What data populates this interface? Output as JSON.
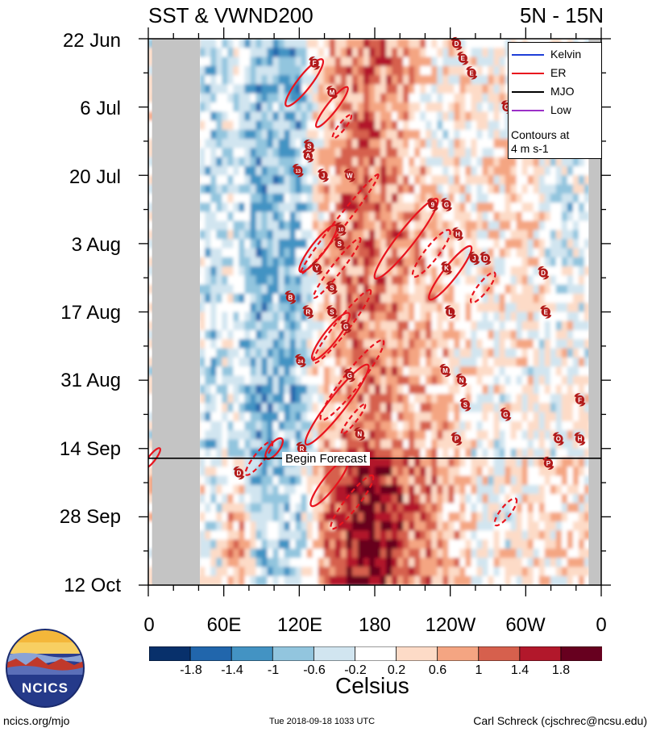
{
  "header": {
    "title_left": "SST & VWND200",
    "title_right": "5N - 15N"
  },
  "chart_data": {
    "type": "heatmap",
    "title": "SST & VWND200",
    "subtitle": "5N - 15N",
    "y_axis": {
      "labels": [
        "22 Jun",
        "6 Jul",
        "20 Jul",
        "3 Aug",
        "17 Aug",
        "31 Aug",
        "14 Sep",
        "28 Sep",
        "12 Oct"
      ],
      "direction": "time increasing downward"
    },
    "x_axis": {
      "labels": [
        "0",
        "60E",
        "120E",
        "180",
        "120W",
        "60W",
        "0"
      ],
      "lon_range": [
        0,
        360
      ]
    },
    "forecast_label": "Begin Forecast",
    "forecast_start_day": 86,
    "colorbar": {
      "units": "Celsius",
      "tick_labels": [
        "-1.8",
        "-1.4",
        "-1",
        "-0.6",
        "-0.2",
        "0.2",
        "0.6",
        "1",
        "1.4",
        "1.8"
      ],
      "colors": [
        "#08306b",
        "#2166ac",
        "#4393c3",
        "#92c5de",
        "#d1e5f0",
        "#ffffff",
        "#fddbc7",
        "#f4a582",
        "#d6604d",
        "#b2182b",
        "#67001f"
      ]
    },
    "legend": {
      "entries": [
        {
          "name": "Kelvin",
          "color": "#1f3fd8"
        },
        {
          "name": "ER",
          "color": "#e8141e"
        },
        {
          "name": "MJO",
          "color": "#000000"
        },
        {
          "name": "Low",
          "color": "#9b30c8"
        }
      ],
      "note_line1": "Contours at",
      "note_line2": "4 m s-1",
      "position": "top-right"
    },
    "land_masks_lon": [
      [
        3,
        41
      ],
      [
        350,
        360
      ]
    ],
    "warm_band": {
      "center_lon": 170,
      "description": "positive SST anomalies over central Pacific"
    },
    "er_contours": [
      {
        "lon": 124,
        "day": 9,
        "dir": 1.0,
        "len": 14,
        "wid": 4,
        "style": "solid"
      },
      {
        "lon": 146,
        "day": 14,
        "dir": 1.0,
        "len": 12,
        "wid": 3,
        "style": "solid"
      },
      {
        "lon": 154,
        "day": 18,
        "dir": 1.0,
        "len": 7,
        "wid": 2,
        "style": "dashed"
      },
      {
        "lon": 152,
        "day": 38,
        "dir": 1.0,
        "len": 30,
        "wid": 3,
        "style": "dashed"
      },
      {
        "lon": 135,
        "day": 43,
        "dir": 1.0,
        "len": 14,
        "wid": 4,
        "style": "solid"
      },
      {
        "lon": 150,
        "day": 47,
        "dir": 1.0,
        "len": 18,
        "wid": 3,
        "style": "dashed"
      },
      {
        "lon": 205,
        "day": 41,
        "dir": 1.0,
        "len": 24,
        "wid": 5,
        "style": "solid"
      },
      {
        "lon": 225,
        "day": 44,
        "dir": 1.0,
        "len": 14,
        "wid": 4,
        "style": "dashed"
      },
      {
        "lon": 240,
        "day": 48,
        "dir": 1.0,
        "len": 16,
        "wid": 4,
        "style": "solid"
      },
      {
        "lon": 266,
        "day": 51,
        "dir": 1.0,
        "len": 9,
        "wid": 3,
        "style": "dashed"
      },
      {
        "lon": 154,
        "day": 59,
        "dir": 1.0,
        "len": 22,
        "wid": 4,
        "style": "dashed"
      },
      {
        "lon": 145,
        "day": 61,
        "dir": 1.0,
        "len": 14,
        "wid": 4,
        "style": "solid"
      },
      {
        "lon": 162,
        "day": 70,
        "dir": 1.0,
        "len": 24,
        "wid": 5,
        "style": "dashed"
      },
      {
        "lon": 150,
        "day": 75,
        "dir": 1.0,
        "len": 24,
        "wid": 5,
        "style": "solid"
      },
      {
        "lon": 163,
        "day": 78,
        "dir": 1.0,
        "len": 9,
        "wid": 2,
        "style": "dashed"
      },
      {
        "lon": 100,
        "day": 84,
        "dir": 1.0,
        "len": 6,
        "wid": 3,
        "style": "solid"
      },
      {
        "lon": 88,
        "day": 86,
        "dir": 1.0,
        "len": 10,
        "wid": 3,
        "style": "dashed"
      },
      {
        "lon": 144,
        "day": 91,
        "dir": 1.0,
        "len": 14,
        "wid": 4,
        "style": "solid"
      },
      {
        "lon": 162,
        "day": 95,
        "dir": 1.0,
        "len": 16,
        "wid": 4,
        "style": "dashed"
      },
      {
        "lon": 284,
        "day": 97,
        "dir": 1.0,
        "len": 8,
        "wid": 3,
        "style": "dashed"
      },
      {
        "lon": 3,
        "day": 86,
        "dir": 1.0,
        "len": 6,
        "wid": 2,
        "style": "solid"
      }
    ],
    "storms": [
      {
        "label": "D",
        "lon": 245,
        "day": 1
      },
      {
        "label": "E",
        "lon": 250,
        "day": 4
      },
      {
        "label": "E",
        "lon": 257,
        "day": 7
      },
      {
        "label": "F",
        "lon": 132,
        "day": 5
      },
      {
        "label": "M",
        "lon": 146,
        "day": 11
      },
      {
        "label": "G",
        "lon": 285,
        "day": 14
      },
      {
        "label": "S",
        "lon": 128,
        "day": 22
      },
      {
        "label": "A",
        "lon": 127,
        "day": 24
      },
      {
        "label": "13",
        "lon": 119,
        "day": 27
      },
      {
        "label": "J",
        "lon": 139,
        "day": 28
      },
      {
        "label": "W",
        "lon": 160,
        "day": 28
      },
      {
        "label": "9",
        "lon": 226,
        "day": 34
      },
      {
        "label": "G",
        "lon": 237,
        "day": 34
      },
      {
        "label": "10",
        "lon": 153,
        "day": 39
      },
      {
        "label": "H",
        "lon": 246,
        "day": 40
      },
      {
        "label": "S",
        "lon": 152,
        "day": 42
      },
      {
        "label": "J",
        "lon": 259,
        "day": 45
      },
      {
        "label": "D",
        "lon": 268,
        "day": 45
      },
      {
        "label": "Y",
        "lon": 134,
        "day": 47
      },
      {
        "label": "K",
        "lon": 237,
        "day": 47
      },
      {
        "label": "D",
        "lon": 314,
        "day": 48
      },
      {
        "label": "S",
        "lon": 146,
        "day": 51
      },
      {
        "label": "B",
        "lon": 113,
        "day": 53
      },
      {
        "label": "R",
        "lon": 127,
        "day": 56
      },
      {
        "label": "S",
        "lon": 146,
        "day": 56
      },
      {
        "label": "L",
        "lon": 240,
        "day": 56
      },
      {
        "label": "E",
        "lon": 316,
        "day": 56
      },
      {
        "label": "G",
        "lon": 157,
        "day": 59
      },
      {
        "label": "24",
        "lon": 121,
        "day": 66
      },
      {
        "label": "M",
        "lon": 236,
        "day": 68
      },
      {
        "label": "G",
        "lon": 160,
        "day": 69
      },
      {
        "label": "N",
        "lon": 249,
        "day": 70
      },
      {
        "label": "F",
        "lon": 343,
        "day": 74
      },
      {
        "label": "S",
        "lon": 252,
        "day": 75
      },
      {
        "label": "G",
        "lon": 284,
        "day": 77
      },
      {
        "label": "N",
        "lon": 168,
        "day": 81
      },
      {
        "label": "O",
        "lon": 326,
        "day": 82
      },
      {
        "label": "H",
        "lon": 343,
        "day": 82
      },
      {
        "label": "P",
        "lon": 245,
        "day": 82
      },
      {
        "label": "R",
        "lon": 122,
        "day": 84
      },
      {
        "label": "P",
        "lon": 318,
        "day": 87
      },
      {
        "label": "D",
        "lon": 72,
        "day": 89
      }
    ]
  },
  "footer": {
    "left": "ncics.org/mjo",
    "center": "Tue 2018-09-18 1033 UTC",
    "right": "Carl Schreck (cjschrec@ncsu.edu)"
  },
  "logo": {
    "text": "NCICS"
  }
}
